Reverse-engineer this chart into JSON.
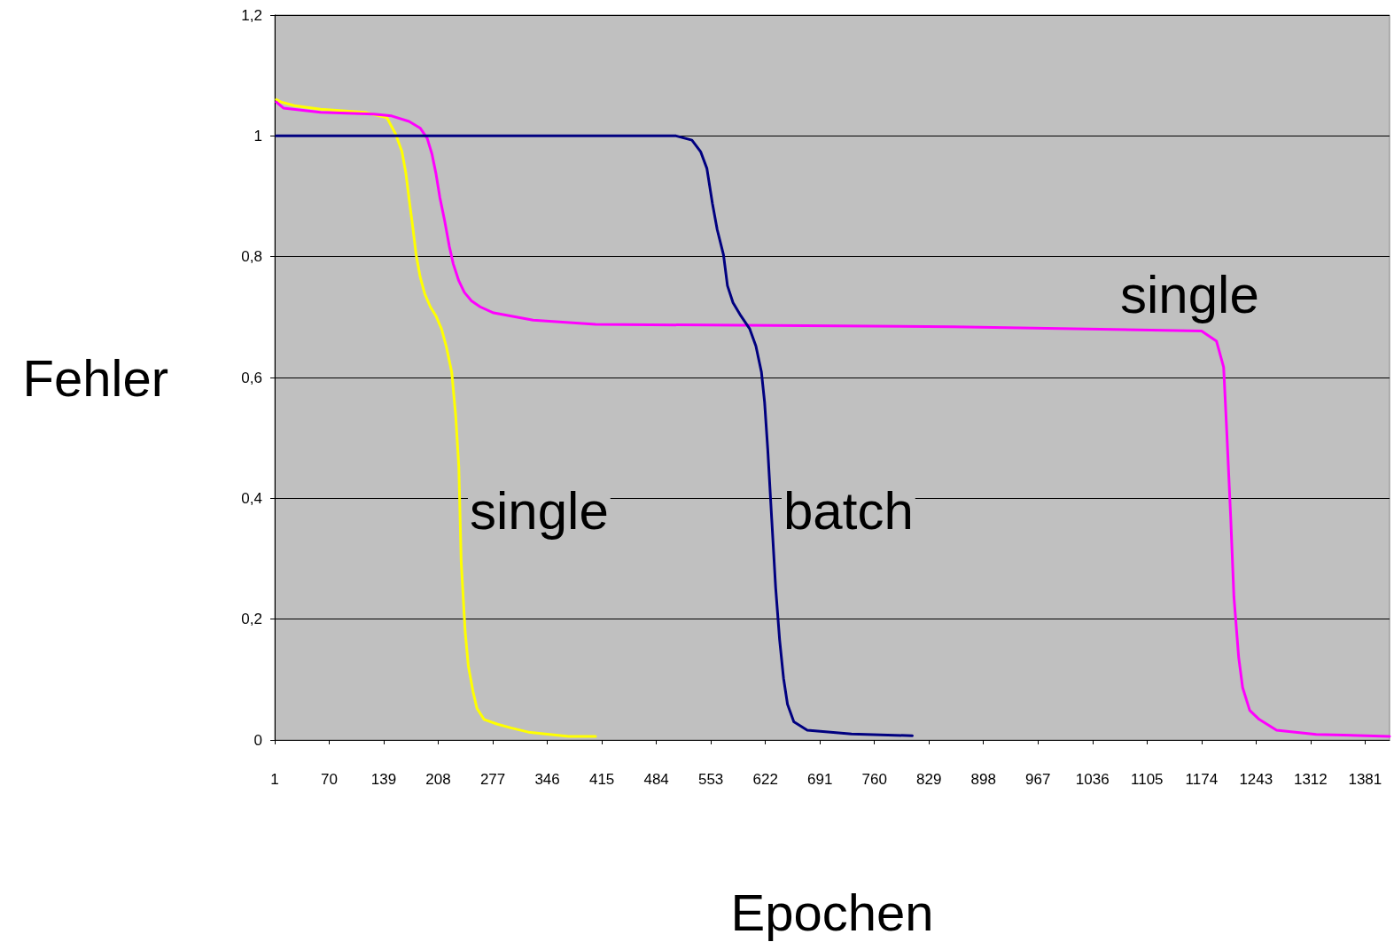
{
  "chart_data": {
    "type": "line",
    "xlabel": "Epochen",
    "ylabel": "Fehler",
    "xlim": [
      1,
      1412
    ],
    "xticks": [
      1,
      70,
      139,
      208,
      277,
      346,
      415,
      484,
      553,
      622,
      691,
      760,
      829,
      898,
      967,
      1036,
      1105,
      1174,
      1243,
      1312,
      1381
    ],
    "ylim": [
      0,
      1.2
    ],
    "yticks": [
      0,
      {
        "value": 0.2,
        "label": "0,2"
      },
      {
        "value": 0.4,
        "label": "0,4"
      },
      {
        "value": 0.6,
        "label": "0,6"
      },
      {
        "value": 0.8,
        "label": "0,8"
      },
      1,
      {
        "value": 1.2,
        "label": "1,2"
      }
    ],
    "grid": "y",
    "marker": "none",
    "line_style": "solid",
    "series": [
      {
        "color": "#ffff00",
        "x": [
          3,
          9,
          26,
          59,
          115,
          143,
          154,
          162,
          167,
          171,
          176,
          180,
          185,
          191,
          198,
          205,
          212,
          218,
          225,
          230,
          234,
          237,
          242,
          246,
          252,
          257,
          266,
          283,
          300,
          322,
          373,
          407
        ],
        "values": [
          1.06,
          1.056,
          1.05,
          1.044,
          1.039,
          1.03,
          1.003,
          0.974,
          0.938,
          0.896,
          0.846,
          0.803,
          0.767,
          0.738,
          0.717,
          0.702,
          0.681,
          0.652,
          0.609,
          0.538,
          0.452,
          0.295,
          0.18,
          0.123,
          0.08,
          0.052,
          0.034,
          0.026,
          0.02,
          0.013,
          0.006,
          0.006
        ]
      },
      {
        "color": "#ff00ff",
        "x": [
          3,
          12,
          59,
          126,
          149,
          171,
          185,
          194,
          200,
          205,
          210,
          216,
          222,
          227,
          234,
          241,
          250,
          261,
          278,
          328,
          407,
          860,
          1174,
          1193,
          1202,
          1206,
          1211,
          1215,
          1221,
          1226,
          1235,
          1247,
          1269,
          1319,
          1412
        ],
        "values": [
          1.056,
          1.046,
          1.039,
          1.036,
          1.033,
          1.024,
          1.013,
          0.996,
          0.97,
          0.938,
          0.898,
          0.86,
          0.817,
          0.788,
          0.76,
          0.741,
          0.727,
          0.717,
          0.707,
          0.695,
          0.688,
          0.684,
          0.677,
          0.66,
          0.617,
          0.509,
          0.366,
          0.237,
          0.137,
          0.087,
          0.049,
          0.034,
          0.016,
          0.009,
          0.006
        ]
      },
      {
        "color": "#000080",
        "x": [
          3,
          509,
          529,
          540,
          548,
          555,
          561,
          569,
          574,
          581,
          591,
          602,
          610,
          617,
          621,
          625,
          630,
          635,
          640,
          645,
          650,
          658,
          675,
          731,
          808
        ],
        "values": [
          1.0,
          1.0,
          0.993,
          0.974,
          0.946,
          0.888,
          0.845,
          0.803,
          0.752,
          0.724,
          0.702,
          0.681,
          0.652,
          0.609,
          0.559,
          0.481,
          0.366,
          0.252,
          0.166,
          0.102,
          0.059,
          0.03,
          0.016,
          0.01,
          0.007
        ]
      }
    ],
    "annotations": [
      "single",
      "batch",
      "single"
    ]
  }
}
